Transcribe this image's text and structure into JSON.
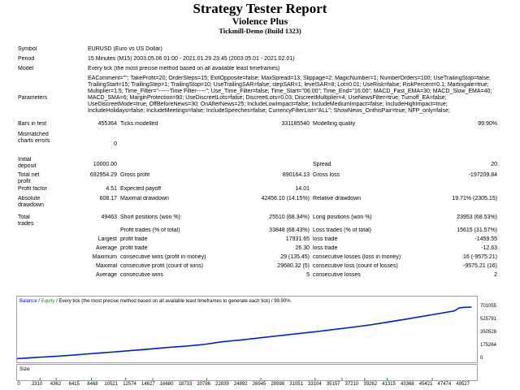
{
  "header": {
    "title": "Strategy Tester Report",
    "expert": "Violence Plus",
    "server": "Tickmill-Demo (Build 1323)"
  },
  "settings": {
    "symbol_label": "Symbol",
    "symbol": "EURUSD (Euro vs US Dollar)",
    "period_label": "Period",
    "period": "15 Minutes (M15) 2003.05.06 01:00 - 2021.01.29 23:45 (2003.05.01 - 2021.02.01)",
    "model_label": "Model",
    "model": "Every tick (the most precise method based on all available least timeframes)",
    "parameters_label": "Parameters",
    "parameters": "EAComment=\"\"; TakeProfit=20; OrderSteps=15; ExitOpposite=false; MaxSpread=13; Slippage=2; MagicNumber=1; NumberOrders=100; UseTrailingStop=false; TrailingStart=15; TrailingStep=1; TrailingStop=10; UseTrailingSAR=false; stepSAR=1; levelSAR=8; Lot=0.01; UseRisk=false; RiskPercent=0.1; Martingale=true; Multiplier=1.5; Time_Filter=\"------Time Filter-----\"; Use_Time_Filter=false; Time_Start=\"06:00\"; Time_End=\"16:00\"; MACD_Fast_EMA=30; MACD_Slow_EMA=40; MACD_SMA=6; MarginProtection=90; UseDiscreetLots=false; DiscreetLots=0.03; DiscreetMultiplier=4; UseNewsFilter=true; Turnoff_EA=false; UseDiscreetMode=true; OffBeforeNews=30; OnAfterNews=25; IncludeLowImpact=false; IncludeMediumImpact=false; IncludeHighImpact=true; IncludeHolidays=false; IncludeMeetings=false; IncludeSpeeches=false; CurrencyFilterList=\"ALL\"; ShowNews_OnthisPair=true; NFP_only=false;"
  },
  "stats": {
    "bars_label": "Bars in test",
    "bars": "455364",
    "ticks_label": "Ticks modelled",
    "ticks": "331185540",
    "quality_label": "Modelling quality",
    "quality": "99.90%",
    "mismatch_label": "Mismatched charts errors",
    "mismatch": "0",
    "deposit_label": "Initial deposit",
    "deposit": "10000.00",
    "spread_label": "Spread",
    "spread": "20",
    "netprofit_label": "Total net profit",
    "netprofit": "692954.29",
    "grossprofit_label": "Gross profit",
    "grossprofit": "890164.13",
    "grossloss_label": "Gross loss",
    "grossloss": "-197209.84",
    "pf_label": "Profit factor",
    "pf": "4.51",
    "payoff_label": "Expected payoff",
    "payoff": "14.01",
    "absdd_label": "Absolute drawdown",
    "absdd": "608.17",
    "maxdd_label": "Maximal drawdown",
    "maxdd": "42456.10 (14.15%)",
    "reldd_label": "Relative drawdown",
    "reldd": "19.71% (2305.15)",
    "trades_label": "Total trades",
    "trades": "49463",
    "short_label": "Short positions (won %)",
    "short": "25510 (68.34%)",
    "long_label": "Long positions (won %)",
    "long": "23953 (68.53%)",
    "ptrades_label": "Profit trades (% of total)",
    "ptrades": "33848 (68.43%)",
    "ltrades_label": "Loss trades (% of total)",
    "ltrades": "15615 (31.57%)",
    "largest_label": "Largest",
    "largest_pt_label": "profit trade",
    "largest_pt": "17931.65",
    "largest_lt_label": "loss trade",
    "largest_lt": "-1459.55",
    "average_label": "Average",
    "average_pt_label": "profit trade",
    "average_pt": "26.30",
    "average_lt_label": "loss trade",
    "average_lt": "-12.63",
    "max_label": "Maximum",
    "max_cw_label": "consecutive wins (profit in money)",
    "max_cw": "29 (135.45)",
    "max_cl_label": "consecutive losses (loss in money)",
    "max_cl": "16 (-9575.21)",
    "maximal_label": "Maximal",
    "maximal_cp_label": "consecutive profit (count of wins)",
    "maximal_cp": "29680.32 (5)",
    "maximal_cl_label": "consecutive loss (count of losses)",
    "maximal_cl": "-9575.21 (16)",
    "avg2_label": "Average",
    "avg_cw_label": "consecutive wins",
    "avg_cw": "5",
    "avg_cl_label": "consecutive losses",
    "avg_cl": "2"
  },
  "chart_data": {
    "type": "line",
    "legend_balance": "Balance",
    "legend_equity": "Equity",
    "legend_rest": "/ Every tick (the most precise method based on all available least timeframes to generate each tick) / 99.90%",
    "size_label": "Size",
    "colors": {
      "balance": "#0000ff",
      "equity": "#00a000",
      "size": "#00a000"
    },
    "yticks": [
      "701055",
      "525791",
      "350528",
      "175264",
      "0"
    ],
    "ylim": [
      -20000,
      755000
    ],
    "xticks": [
      "0",
      "2310",
      "4362",
      "6415",
      "8468",
      "10521",
      "12574",
      "14627",
      "16680",
      "18733",
      "20786",
      "22839",
      "24892",
      "26945",
      "28998",
      "31051",
      "33104",
      "35157",
      "37210",
      "39262",
      "41315",
      "43368",
      "45421",
      "47474",
      "49527"
    ],
    "xlim": [
      0,
      51000
    ],
    "balance": [
      [
        0,
        10000
      ],
      [
        2310,
        28000
      ],
      [
        4362,
        42000
      ],
      [
        6415,
        60000
      ],
      [
        8468,
        80000
      ],
      [
        10521,
        98000
      ],
      [
        12574,
        118000
      ],
      [
        14627,
        138000
      ],
      [
        16680,
        160000
      ],
      [
        18733,
        178000
      ],
      [
        20786,
        202000
      ],
      [
        22839,
        238000
      ],
      [
        24892,
        262000
      ],
      [
        26945,
        290000
      ],
      [
        28998,
        318000
      ],
      [
        31051,
        345000
      ],
      [
        33104,
        372000
      ],
      [
        35157,
        402000
      ],
      [
        37210,
        432000
      ],
      [
        39262,
        465000
      ],
      [
        41315,
        505000
      ],
      [
        43368,
        545000
      ],
      [
        45421,
        588000
      ],
      [
        47474,
        630000
      ],
      [
        48500,
        652000
      ],
      [
        49000,
        690000
      ],
      [
        49527,
        700000
      ],
      [
        50400,
        702000
      ]
    ]
  }
}
